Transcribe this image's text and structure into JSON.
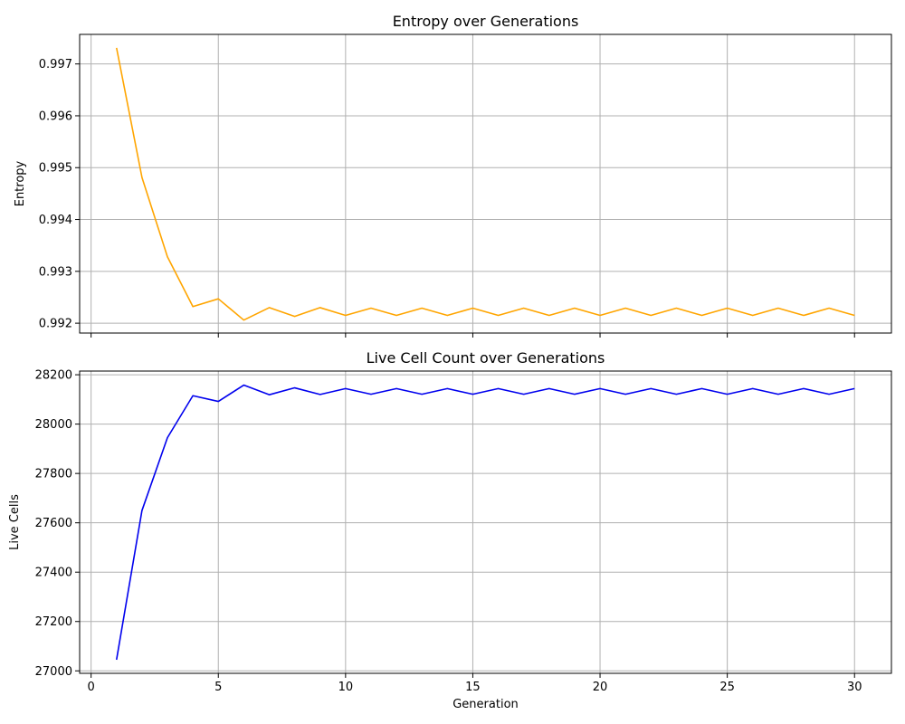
{
  "chart_data": [
    {
      "type": "line",
      "title": "Entropy over Generations",
      "xlabel": "",
      "ylabel": "Entropy",
      "xlim": [
        -0.45,
        31.45
      ],
      "ylim": [
        0.99181,
        0.99757
      ],
      "xticks": [
        0,
        5,
        10,
        15,
        20,
        25,
        30
      ],
      "xtick_labels_visible": false,
      "yticks": [
        0.992,
        0.993,
        0.994,
        0.995,
        0.996,
        0.997
      ],
      "ytick_labels": [
        "0.992",
        "0.993",
        "0.994",
        "0.995",
        "0.996",
        "0.997"
      ],
      "grid": true,
      "series": [
        {
          "color": "#ffa500",
          "x": [
            1,
            2,
            3,
            4,
            5,
            6,
            7,
            8,
            9,
            10,
            11,
            12,
            13,
            14,
            15,
            16,
            17,
            18,
            19,
            20,
            21,
            22,
            23,
            24,
            25,
            26,
            27,
            28,
            29,
            30
          ],
          "y": [
            0.99731,
            0.99481,
            0.99328,
            0.99232,
            0.99247,
            0.99206,
            0.9923,
            0.99213,
            0.9923,
            0.99215,
            0.99229,
            0.99215,
            0.99229,
            0.99215,
            0.99229,
            0.99215,
            0.99229,
            0.99215,
            0.99229,
            0.99215,
            0.99229,
            0.99215,
            0.99229,
            0.99215,
            0.99229,
            0.99215,
            0.99229,
            0.99215,
            0.99229,
            0.99215
          ]
        }
      ]
    },
    {
      "type": "line",
      "title": "Live Cell Count over Generations",
      "xlabel": "Generation",
      "ylabel": "Live Cells",
      "xlim": [
        -0.45,
        31.45
      ],
      "ylim": [
        26990,
        28215
      ],
      "xticks": [
        0,
        5,
        10,
        15,
        20,
        25,
        30
      ],
      "xtick_labels": [
        "0",
        "5",
        "10",
        "15",
        "20",
        "25",
        "30"
      ],
      "xtick_labels_visible": true,
      "yticks": [
        27000,
        27200,
        27400,
        27600,
        27800,
        28000,
        28200
      ],
      "ytick_labels": [
        "27000",
        "27200",
        "27400",
        "27600",
        "27800",
        "28000",
        "28200"
      ],
      "grid": true,
      "series": [
        {
          "color": "#0000ee",
          "x": [
            1,
            2,
            3,
            4,
            5,
            6,
            7,
            8,
            9,
            10,
            11,
            12,
            13,
            14,
            15,
            16,
            17,
            18,
            19,
            20,
            21,
            22,
            23,
            24,
            25,
            26,
            27,
            28,
            29,
            30
          ],
          "y": [
            27045,
            27650,
            27945,
            28115,
            28092,
            28158,
            28119,
            28147,
            28120,
            28144,
            28121,
            28144,
            28121,
            28144,
            28121,
            28144,
            28121,
            28144,
            28121,
            28144,
            28121,
            28144,
            28121,
            28144,
            28121,
            28144,
            28121,
            28144,
            28121,
            28144
          ]
        }
      ]
    }
  ]
}
